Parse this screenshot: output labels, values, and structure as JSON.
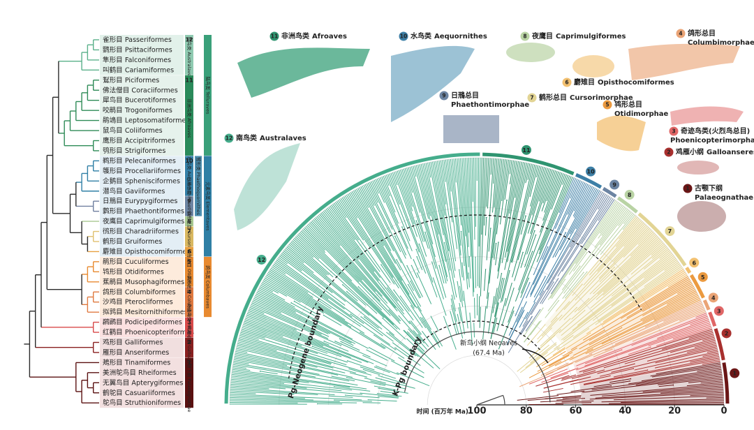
{
  "orders": [
    "雀形目 Passeriformes",
    "鹦形目 Psittaciformes",
    "隼形目 Falconiformes",
    "叫鹤目 Cariamiformes",
    "鴷形目 Piciformes",
    "佛法僧目 Coraciiformes",
    "犀鸟目 Bucerotiformes",
    "咬鹃目 Trogoniformes",
    "鹃鴗目 Leptosomatiformes",
    "鼠鸟目 Coliiformes",
    "鹰形目 Accipitriformes",
    "鸮形目 Strigiformes",
    "鹈形目 Pelecaniformes",
    "鹱形目 Procellariiformes",
    "企鹅目 Sphenisciformes",
    "潜鸟目 Gaviiformes",
    "日鳽目 Eurypygiformes",
    "鹲形目 Phaethontiformes",
    "夜鹰目 Caprimulgiformes",
    "鸻形目 Charadriiformes",
    "鹤形目 Gruiformes",
    "麝雉目 Opisthocomiformes",
    "鹃形目 Cuculiformes",
    "鸨形目 Otidiformes",
    "蕉鹃目 Musophagiformes",
    "鸽形目 Columbiformes",
    "沙鸡目 Pterocliformes",
    "拟鹑目 Mesitornithiformes",
    "䴙䴘目 Podicipediformes",
    "红鹳目 Phoenicopteriformes",
    "鸡形目 Galliformes",
    "雁形目 Anseriformes",
    "鴂形目 Tinamiformes",
    "美洲鸵鸟目 Rheiformes",
    "无翼鸟目 Apterygiformes",
    "鹤鸵目 Casuariiformes",
    "鸵鸟目 Struthioniformes"
  ],
  "left_groups": [
    {
      "num": 12,
      "name": "南鸟类 Australaves"
    },
    {
      "num": 11,
      "name": "非洲鸟类 Afroaves"
    },
    {
      "num": 10,
      "name": "水鸟类 Aequornithes"
    },
    {
      "num": 9,
      "name": "日鳽总目 Phaethontimorphae"
    },
    {
      "num": 8
    },
    {
      "num": 7,
      "name": "鹤形总目 Cursorimorphae"
    },
    {
      "num": 6
    },
    {
      "num": 5,
      "name": "鸨形总目 Otidimorphae"
    },
    {
      "num": 4,
      "name": "鸽形总目 Columbimorphae"
    },
    {
      "num": 3,
      "name": "奇迹鸟类 Mirandornithes"
    },
    {
      "num": 2,
      "name": "鸡雁小纲 Galloanseres"
    },
    {
      "num": 1,
      "name": "古颚下纲 Palaeognathae"
    }
  ],
  "supergroups": [
    "陆鸟类 Telluraves",
    "鹭形类 Phaethoquornithes",
    "元素鸟类 Elementaves",
    "鸽鸟类 Columbaves"
  ],
  "illustration_labels": [
    {
      "num": 11,
      "cn": "非洲鸟类",
      "en": "Afroaves"
    },
    {
      "num": 10,
      "cn": "水鸟类",
      "en": "Aequornithes"
    },
    {
      "num": 8,
      "cn": "夜鹰目",
      "en": "Caprimulgiformes"
    },
    {
      "num": 4,
      "cn": "鸽形总目",
      "en": "Columbimorphae"
    },
    {
      "num": 9,
      "cn": "日鳽总目",
      "en": "Phaethontimorphae"
    },
    {
      "num": 7,
      "cn": "鹤形总目",
      "en": "Cursorimorphae"
    },
    {
      "num": 6,
      "cn": "麝雉目",
      "en": "Opisthocomiformes"
    },
    {
      "num": 5,
      "cn": "鸨形总目",
      "en": "Otidimorphae"
    },
    {
      "num": 3,
      "cn": "奇迹鸟类(火烈鸟总目)",
      "en": "Phoenicopterimorphae"
    },
    {
      "num": 2,
      "cn": "鸡雁小纲",
      "en": "Galloanseres"
    },
    {
      "num": 1,
      "cn": "古颚下纲",
      "en": "Palaeognathae"
    },
    {
      "num": 12,
      "cn": "南鸟类",
      "en": "Australaves"
    }
  ],
  "time_axis": {
    "label": "时间 (百万年 Ma)",
    "lim": [
      100,
      0
    ],
    "ticks": [
      100,
      80,
      60,
      40,
      20,
      0
    ]
  },
  "annotations": {
    "pg_neogene": "Pg-Neogene boundary",
    "kpg": "K-Pg boundary",
    "neoaves": "新鸟小纲 Neoaves",
    "neoaves_age": "(67.4 Ma)"
  }
}
